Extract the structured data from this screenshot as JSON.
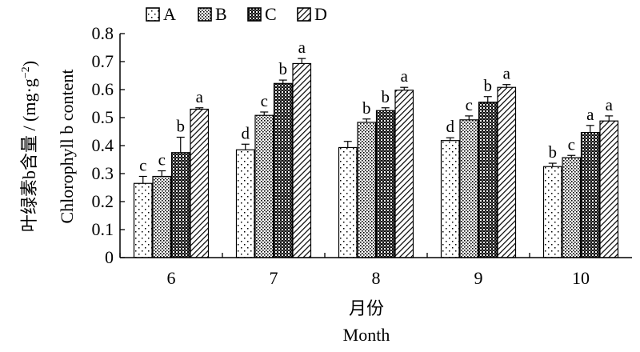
{
  "chart_data": {
    "type": "bar",
    "categories": [
      "6",
      "7",
      "8",
      "9",
      "10"
    ],
    "series": [
      {
        "name": "A",
        "values": [
          0.265,
          0.385,
          0.393,
          0.418,
          0.325
        ],
        "errors": [
          0.025,
          0.02,
          0.022,
          0.01,
          0.012
        ],
        "labels": [
          "c",
          "d",
          "",
          "d",
          "b"
        ],
        "pattern": "sparse-dots"
      },
      {
        "name": "B",
        "values": [
          0.29,
          0.508,
          0.483,
          0.492,
          0.357
        ],
        "errors": [
          0.02,
          0.012,
          0.012,
          0.014,
          0.008
        ],
        "labels": [
          "c",
          "c",
          "b",
          "c",
          "c"
        ],
        "pattern": "dense-dots"
      },
      {
        "name": "C",
        "values": [
          0.375,
          0.622,
          0.525,
          0.555,
          0.447
        ],
        "errors": [
          0.055,
          0.012,
          0.01,
          0.02,
          0.025
        ],
        "labels": [
          "b",
          "b",
          "b",
          "b",
          "a"
        ],
        "pattern": "checker"
      },
      {
        "name": "D",
        "values": [
          0.53,
          0.693,
          0.598,
          0.608,
          0.488
        ],
        "errors": [
          0.005,
          0.018,
          0.01,
          0.01,
          0.018
        ],
        "labels": [
          "a",
          "a",
          "a",
          "a",
          "a"
        ],
        "pattern": "diagonal-hatch"
      }
    ],
    "ylabel_cn": "叶绿素b含量 / (mg·g",
    "ylabel_cn_sup": "−2",
    "ylabel_cn_end": ")",
    "ylabel_en": "Chlorophyll b content",
    "xlabel_cn": "月份",
    "xlabel_en": "Month",
    "ylim": [
      0,
      0.8
    ],
    "yticks": [
      "0",
      "0.1",
      "0.2",
      "0.3",
      "0.4",
      "0.5",
      "0.6",
      "0.7",
      "0.8"
    ],
    "grid": false,
    "legend_position": "top"
  }
}
